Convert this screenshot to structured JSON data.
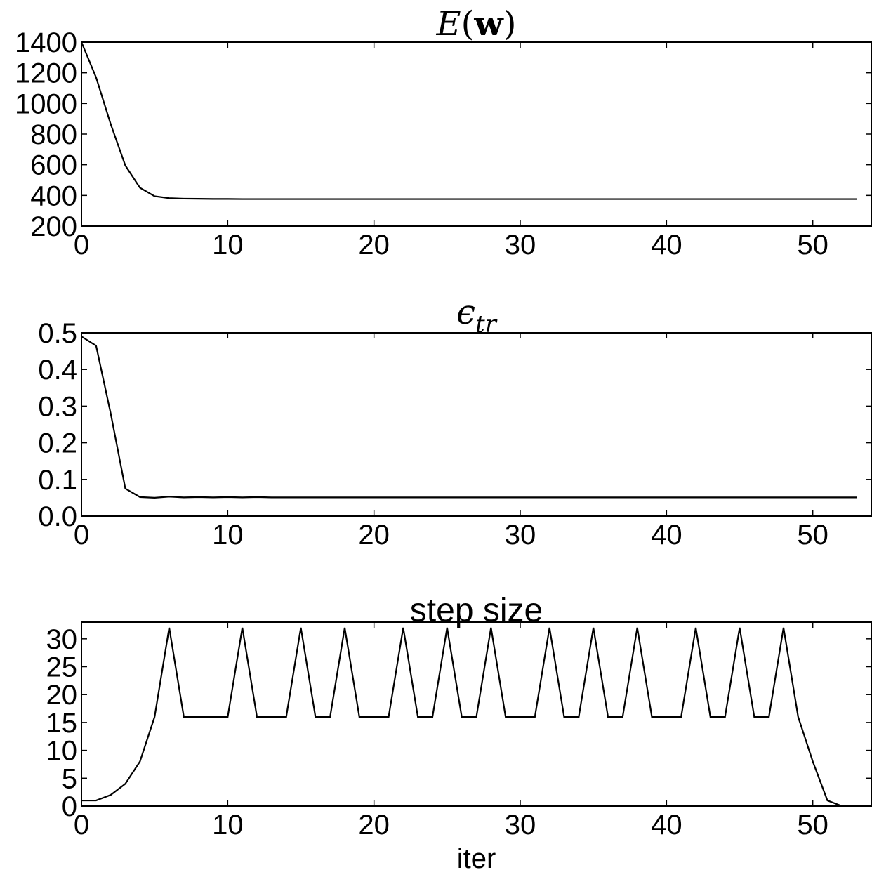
{
  "chart_data": [
    {
      "type": "line",
      "title": {
        "symbol": "E",
        "open": "(",
        "var": "w",
        "close": ")"
      },
      "xlabel": "",
      "ylabel": "",
      "xlim": [
        0,
        54
      ],
      "ylim": [
        200,
        1400
      ],
      "xticks": [
        "0",
        "10",
        "20",
        "30",
        "40",
        "50"
      ],
      "yticks": [
        "200",
        "400",
        "600",
        "800",
        "1000",
        "1200",
        "1400"
      ],
      "grid": false,
      "series": [
        {
          "x": [
            0,
            1,
            2,
            3,
            4,
            5,
            6,
            7,
            8,
            9,
            10,
            11,
            12,
            13,
            14,
            15,
            16,
            17,
            18,
            19,
            20,
            21,
            22,
            23,
            24,
            25,
            26,
            27,
            28,
            29,
            30,
            31,
            32,
            33,
            34,
            35,
            36,
            37,
            38,
            39,
            40,
            41,
            42,
            43,
            44,
            45,
            46,
            47,
            48,
            49,
            50,
            51,
            52,
            53
          ],
          "values": [
            1400,
            1170,
            865,
            595,
            450,
            395,
            382,
            379,
            378,
            377,
            377,
            376,
            376,
            376,
            376,
            376,
            376,
            376,
            376,
            376,
            376,
            376,
            376,
            376,
            376,
            376,
            376,
            376,
            376,
            376,
            376,
            376,
            376,
            376,
            376,
            376,
            376,
            376,
            376,
            376,
            376,
            376,
            376,
            376,
            376,
            376,
            376,
            376,
            376,
            376,
            376,
            376,
            376,
            376
          ]
        }
      ]
    },
    {
      "type": "line",
      "title": {
        "symbol": "ϵ",
        "subscript": "tr"
      },
      "xlabel": "",
      "ylabel": "",
      "xlim": [
        0,
        54
      ],
      "ylim": [
        0.0,
        0.5
      ],
      "xticks": [
        "0",
        "10",
        "20",
        "30",
        "40",
        "50"
      ],
      "yticks": [
        "0.0",
        "0.1",
        "0.2",
        "0.3",
        "0.4",
        "0.5"
      ],
      "grid": false,
      "series": [
        {
          "x": [
            0,
            1,
            2,
            3,
            4,
            5,
            6,
            7,
            8,
            9,
            10,
            11,
            12,
            13,
            14,
            15,
            16,
            17,
            18,
            19,
            20,
            21,
            22,
            23,
            24,
            25,
            26,
            27,
            28,
            29,
            30,
            31,
            32,
            33,
            34,
            35,
            36,
            37,
            38,
            39,
            40,
            41,
            42,
            43,
            44,
            45,
            46,
            47,
            48,
            49,
            50,
            51,
            52,
            53
          ],
          "values": [
            0.49,
            0.465,
            0.28,
            0.075,
            0.052,
            0.05,
            0.053,
            0.051,
            0.052,
            0.051,
            0.052,
            0.051,
            0.052,
            0.051,
            0.051,
            0.051,
            0.051,
            0.051,
            0.051,
            0.051,
            0.051,
            0.051,
            0.051,
            0.051,
            0.051,
            0.051,
            0.051,
            0.051,
            0.051,
            0.051,
            0.051,
            0.051,
            0.051,
            0.051,
            0.051,
            0.051,
            0.051,
            0.051,
            0.051,
            0.051,
            0.051,
            0.051,
            0.051,
            0.051,
            0.051,
            0.051,
            0.051,
            0.051,
            0.051,
            0.051,
            0.051,
            0.051,
            0.051,
            0.051
          ]
        }
      ]
    },
    {
      "type": "line",
      "title": "step size",
      "xlabel": "iter",
      "ylabel": "",
      "xlim": [
        0,
        54
      ],
      "ylim": [
        0,
        33
      ],
      "xticks": [
        "0",
        "10",
        "20",
        "30",
        "40",
        "50"
      ],
      "yticks": [
        "0",
        "5",
        "10",
        "15",
        "20",
        "25",
        "30"
      ],
      "grid": false,
      "series": [
        {
          "x": [
            0,
            1,
            2,
            3,
            4,
            5,
            6,
            7,
            8,
            9,
            10,
            11,
            12,
            13,
            14,
            15,
            16,
            17,
            18,
            19,
            20,
            21,
            22,
            23,
            24,
            25,
            26,
            27,
            28,
            29,
            30,
            31,
            32,
            33,
            34,
            35,
            36,
            37,
            38,
            39,
            40,
            41,
            42,
            43,
            44,
            45,
            46,
            47,
            48,
            49,
            50,
            51,
            52,
            53
          ],
          "values": [
            1,
            1,
            2,
            4,
            8,
            16,
            32,
            16,
            16,
            16,
            16,
            32,
            16,
            16,
            16,
            32,
            16,
            16,
            32,
            16,
            16,
            16,
            32,
            16,
            16,
            32,
            16,
            16,
            32,
            16,
            16,
            16,
            32,
            16,
            16,
            32,
            16,
            16,
            32,
            16,
            16,
            16,
            32,
            16,
            16,
            32,
            16,
            16,
            32,
            16,
            8,
            1,
            0,
            0
          ]
        }
      ]
    }
  ]
}
